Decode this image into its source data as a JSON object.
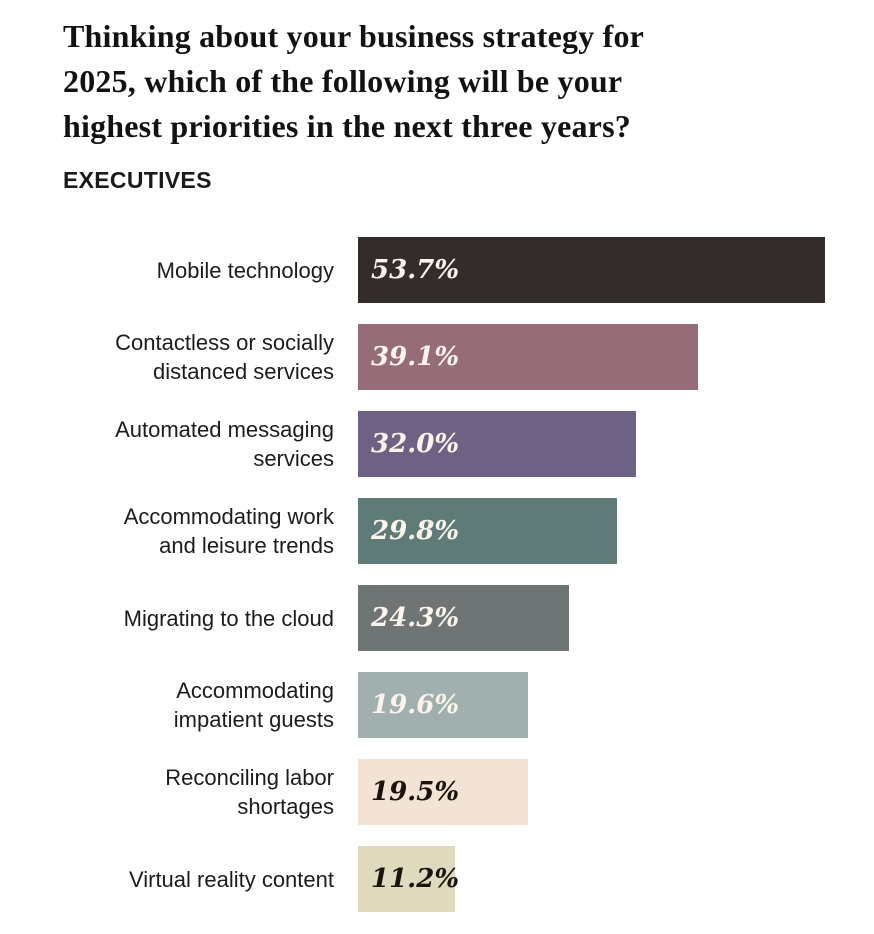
{
  "page": {
    "title_lines": [
      "Thinking about your business strategy for",
      "2025, which of the following will be your",
      "highest priorities in the next three years?"
    ],
    "subtitle": "EXECUTIVES"
  },
  "colors": {
    "background": "#ffffff",
    "title_text": "#141112",
    "label_text": "#1c1c1c",
    "value_text_light": "#faf4ec",
    "value_text_dark": "#1a130e"
  },
  "chart_data": {
    "type": "bar",
    "orientation": "horizontal",
    "title": "Thinking about your business strategy for 2025, which of the following will be your highest priorities in the next three years?",
    "subtitle": "EXECUTIVES",
    "unit": "%",
    "xlim": [
      0,
      55
    ],
    "grid": false,
    "legend": false,
    "categories": [
      "Mobile technology",
      "Contactless or socially\ndistanced services",
      "Automated messaging\nservices",
      "Accommodating work\nand leisure trends",
      "Migrating to the cloud",
      "Accommodating\nimpatient guests",
      "Reconciling labor\nshortages",
      "Virtual reality content"
    ],
    "values": [
      53.7,
      39.1,
      32.0,
      29.8,
      24.3,
      19.6,
      19.5,
      11.2
    ],
    "value_labels": [
      "53.7%",
      "39.1%",
      "32.0%",
      "29.8%",
      "24.3%",
      "19.6%",
      "19.5%",
      "11.2%"
    ],
    "bar_colors": [
      "#322d2b",
      "#956c78",
      "#6d6284",
      "#5e7b77",
      "#6f7475",
      "#a1afae",
      "#f2e3d5",
      "#dfd9bd"
    ],
    "value_text_colors": [
      "#faf4ec",
      "#faf4ec",
      "#faf4ec",
      "#faf4ec",
      "#faf4ec",
      "#faf4ec",
      "#1a130e",
      "#1a130e"
    ]
  }
}
